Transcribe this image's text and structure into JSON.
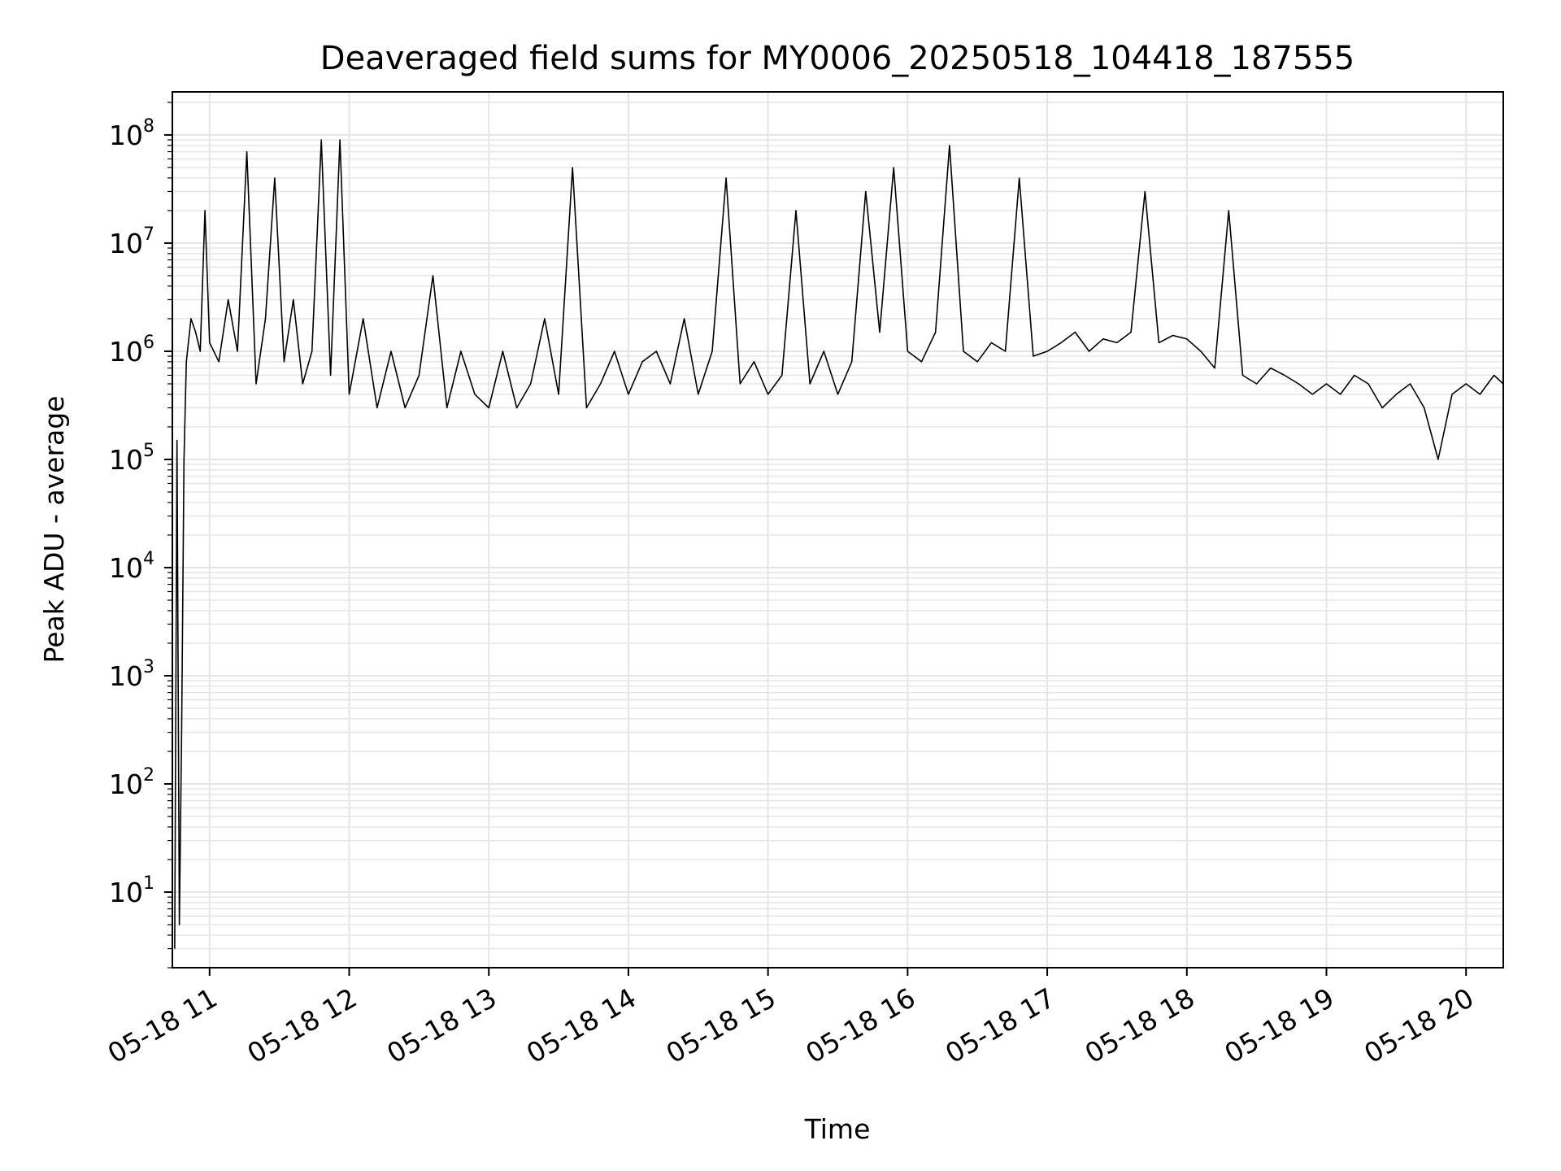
{
  "chart_data": {
    "type": "line",
    "title": "Deaveraged field sums for MY0006_20250518_104418_187555",
    "xlabel": "Time",
    "ylabel": "Peak ADU - average",
    "yscale": "log",
    "xlim": [
      "05-18 10:44",
      "05-18 20:16"
    ],
    "ylim": [
      2,
      250000000
    ],
    "grid": true,
    "line_color": "#000000",
    "grid_color": "#e5e5e5",
    "x_ticks": [
      {
        "value": "05-18 11:00",
        "label": "05-18 11"
      },
      {
        "value": "05-18 12:00",
        "label": "05-18 12"
      },
      {
        "value": "05-18 13:00",
        "label": "05-18 13"
      },
      {
        "value": "05-18 14:00",
        "label": "05-18 14"
      },
      {
        "value": "05-18 15:00",
        "label": "05-18 15"
      },
      {
        "value": "05-18 16:00",
        "label": "05-18 16"
      },
      {
        "value": "05-18 17:00",
        "label": "05-18 17"
      },
      {
        "value": "05-18 18:00",
        "label": "05-18 18"
      },
      {
        "value": "05-18 19:00",
        "label": "05-18 19"
      },
      {
        "value": "05-18 20:00",
        "label": "05-18 20"
      }
    ],
    "y_ticks": [
      {
        "value": 10,
        "base": "10",
        "exp": "1"
      },
      {
        "value": 100,
        "base": "10",
        "exp": "2"
      },
      {
        "value": 1000,
        "base": "10",
        "exp": "3"
      },
      {
        "value": 10000,
        "base": "10",
        "exp": "4"
      },
      {
        "value": 100000,
        "base": "10",
        "exp": "5"
      },
      {
        "value": 1000000,
        "base": "10",
        "exp": "6"
      },
      {
        "value": 10000000,
        "base": "10",
        "exp": "7"
      },
      {
        "value": 100000000,
        "base": "10",
        "exp": "8"
      }
    ],
    "series": [
      {
        "x": [
          "05-18 10:45",
          "05-18 10:46",
          "05-18 10:47",
          "05-18 10:48",
          "05-18 10:49",
          "05-18 10:50",
          "05-18 10:52",
          "05-18 10:54",
          "05-18 10:56",
          "05-18 10:58",
          "05-18 11:00",
          "05-18 11:04",
          "05-18 11:08",
          "05-18 11:12",
          "05-18 11:16",
          "05-18 11:20",
          "05-18 11:24",
          "05-18 11:28",
          "05-18 11:32",
          "05-18 11:36",
          "05-18 11:40",
          "05-18 11:44",
          "05-18 11:48",
          "05-18 11:52",
          "05-18 11:56",
          "05-18 12:00",
          "05-18 12:06",
          "05-18 12:12",
          "05-18 12:18",
          "05-18 12:24",
          "05-18 12:30",
          "05-18 12:36",
          "05-18 12:42",
          "05-18 12:48",
          "05-18 12:54",
          "05-18 13:00",
          "05-18 13:06",
          "05-18 13:12",
          "05-18 13:18",
          "05-18 13:24",
          "05-18 13:30",
          "05-18 13:36",
          "05-18 13:42",
          "05-18 13:48",
          "05-18 13:54",
          "05-18 14:00",
          "05-18 14:06",
          "05-18 14:12",
          "05-18 14:18",
          "05-18 14:24",
          "05-18 14:30",
          "05-18 14:36",
          "05-18 14:42",
          "05-18 14:48",
          "05-18 14:54",
          "05-18 15:00",
          "05-18 15:06",
          "05-18 15:12",
          "05-18 15:18",
          "05-18 15:24",
          "05-18 15:30",
          "05-18 15:36",
          "05-18 15:42",
          "05-18 15:48",
          "05-18 15:54",
          "05-18 16:00",
          "05-18 16:06",
          "05-18 16:12",
          "05-18 16:18",
          "05-18 16:24",
          "05-18 16:30",
          "05-18 16:36",
          "05-18 16:42",
          "05-18 16:48",
          "05-18 16:54",
          "05-18 17:00",
          "05-18 17:06",
          "05-18 17:12",
          "05-18 17:18",
          "05-18 17:24",
          "05-18 17:30",
          "05-18 17:36",
          "05-18 17:42",
          "05-18 17:48",
          "05-18 17:54",
          "05-18 18:00",
          "05-18 18:06",
          "05-18 18:12",
          "05-18 18:18",
          "05-18 18:24",
          "05-18 18:30",
          "05-18 18:36",
          "05-18 18:42",
          "05-18 18:48",
          "05-18 18:54",
          "05-18 19:00",
          "05-18 19:06",
          "05-18 19:12",
          "05-18 19:18",
          "05-18 19:24",
          "05-18 19:30",
          "05-18 19:36",
          "05-18 19:42",
          "05-18 19:48",
          "05-18 19:54",
          "05-18 20:00",
          "05-18 20:06",
          "05-18 20:12",
          "05-18 20:16"
        ],
        "y": [
          3,
          150000,
          5,
          300,
          100000,
          800000,
          2000000,
          1500000,
          1000000,
          20000000,
          1200000,
          800000,
          3000000,
          1000000,
          70000000,
          500000,
          2000000,
          40000000,
          800000,
          3000000,
          500000,
          1000000,
          90000000,
          600000,
          90000000,
          400000,
          2000000,
          300000,
          1000000,
          300000,
          600000,
          5000000,
          300000,
          1000000,
          400000,
          300000,
          1000000,
          300000,
          500000,
          2000000,
          400000,
          50000000,
          300000,
          500000,
          1000000,
          400000,
          800000,
          1000000,
          500000,
          2000000,
          400000,
          1000000,
          40000000,
          500000,
          800000,
          400000,
          600000,
          20000000,
          500000,
          1000000,
          400000,
          800000,
          30000000,
          1500000,
          50000000,
          1000000,
          800000,
          1500000,
          80000000,
          1000000,
          800000,
          1200000,
          1000000,
          40000000,
          900000,
          1000000,
          1200000,
          1500000,
          1000000,
          1300000,
          1200000,
          1500000,
          30000000,
          1200000,
          1400000,
          1300000,
          1000000,
          700000,
          20000000,
          600000,
          500000,
          700000,
          600000,
          500000,
          400000,
          500000,
          400000,
          600000,
          500000,
          300000,
          400000,
          500000,
          300000,
          100000,
          400000,
          500000,
          400000,
          600000,
          500000
        ]
      }
    ]
  }
}
